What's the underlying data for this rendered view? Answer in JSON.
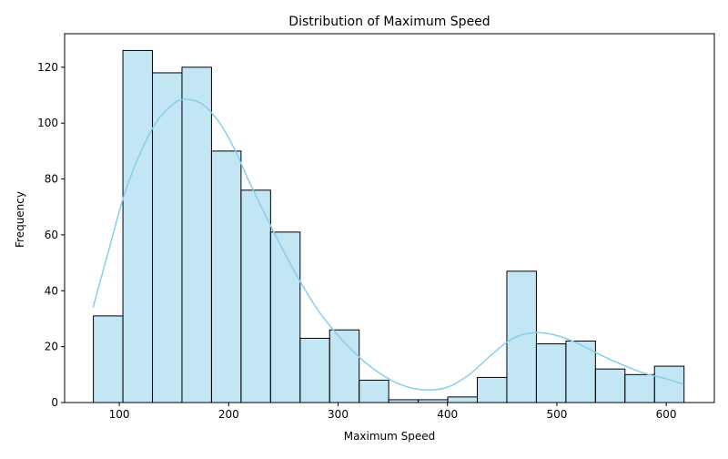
{
  "chart_data": {
    "type": "bar",
    "subtype": "histogram",
    "title": "Distribution of Maximum Speed",
    "xlabel": "Maximum Speed",
    "ylabel": "Frequency",
    "xlim": [
      50,
      644
    ],
    "ylim": [
      0,
      132
    ],
    "xticks": [
      100,
      200,
      300,
      400,
      500,
      600
    ],
    "yticks": [
      0,
      20,
      40,
      60,
      80,
      100,
      120
    ],
    "bins": [
      {
        "x0": 76.3,
        "x1": 103.3,
        "count": 31
      },
      {
        "x0": 103.3,
        "x1": 130.3,
        "count": 126
      },
      {
        "x0": 130.3,
        "x1": 157.3,
        "count": 118
      },
      {
        "x0": 157.3,
        "x1": 184.3,
        "count": 120
      },
      {
        "x0": 184.3,
        "x1": 211.3,
        "count": 90
      },
      {
        "x0": 211.3,
        "x1": 238.3,
        "count": 76
      },
      {
        "x0": 238.3,
        "x1": 265.3,
        "count": 61
      },
      {
        "x0": 265.3,
        "x1": 292.3,
        "count": 23
      },
      {
        "x0": 292.3,
        "x1": 319.3,
        "count": 26
      },
      {
        "x0": 319.3,
        "x1": 346.3,
        "count": 8
      },
      {
        "x0": 346.3,
        "x1": 373.3,
        "count": 1
      },
      {
        "x0": 373.3,
        "x1": 400.3,
        "count": 1
      },
      {
        "x0": 400.3,
        "x1": 427.3,
        "count": 2
      },
      {
        "x0": 427.3,
        "x1": 454.3,
        "count": 9
      },
      {
        "x0": 454.3,
        "x1": 481.3,
        "count": 47
      },
      {
        "x0": 481.3,
        "x1": 508.3,
        "count": 21
      },
      {
        "x0": 508.3,
        "x1": 535.3,
        "count": 22
      },
      {
        "x0": 535.3,
        "x1": 562.3,
        "count": 12
      },
      {
        "x0": 562.3,
        "x1": 589.3,
        "count": 10
      },
      {
        "x0": 589.3,
        "x1": 616.3,
        "count": 13
      }
    ],
    "kde": {
      "x": [
        76,
        90,
        105,
        120,
        135,
        150,
        160,
        175,
        190,
        205,
        220,
        240,
        260,
        280,
        300,
        320,
        340,
        360,
        380,
        400,
        420,
        440,
        460,
        480,
        500,
        520,
        540,
        560,
        580,
        600,
        616
      ],
      "y": [
        34,
        54,
        75,
        90,
        101,
        107,
        108.5,
        107,
        101,
        91,
        78,
        62,
        47,
        34,
        24,
        16,
        10,
        6,
        4.5,
        5.5,
        10,
        17,
        23,
        25,
        24,
        21,
        17,
        13.5,
        10.5,
        8.5,
        6.5
      ]
    },
    "bar_color": "#87ceeb",
    "bar_opacity": 0.5,
    "bar_edge_color": "#000000",
    "kde_color": "#87ceeb",
    "grid": false,
    "legend": "none"
  }
}
